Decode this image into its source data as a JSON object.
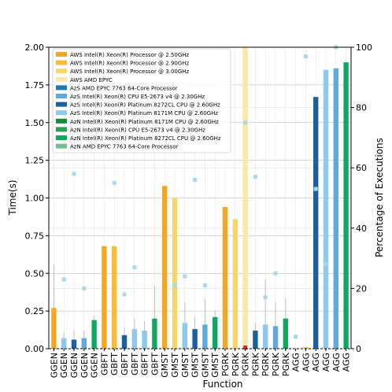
{
  "chart_data": {
    "type": "bar",
    "xlabel": "Function",
    "ylabel": "Time(s)",
    "y2label": "Percentage of Executions",
    "ylim": [
      0,
      2.0
    ],
    "y2lim": [
      0,
      100
    ],
    "yticks": [
      "0.00",
      "0.25",
      "0.50",
      "0.75",
      "1.00",
      "1.25",
      "1.50",
      "1.75",
      "2.00"
    ],
    "y2ticks": [
      "0",
      "20",
      "40",
      "60",
      "80",
      "100"
    ],
    "grid": true,
    "legend_position": "top-left",
    "legend": [
      {
        "name": "AWS Intel(R) Xeon(R) Processor @ 2.50GHz",
        "color": "#f5a623"
      },
      {
        "name": "AWS Intel(R) Xeon(R) Processor @ 2.90GHz",
        "color": "#f7bd3a"
      },
      {
        "name": "AWS Intel(R) Xeon(R) Processor @ 3.00GHz",
        "color": "#fad66a"
      },
      {
        "name": "AWS AMD EPYC",
        "color": "#fbe7a6"
      },
      {
        "name": "AzS AMD EPYC 7763 64-Core Processor",
        "color": "#1f77b4"
      },
      {
        "name": "AzS Intel(R) Xeon(R) CPU E5-2673 v4 @ 2.30GHz",
        "color": "#5fa8e0"
      },
      {
        "name": "AzS Intel(R) Xeon(R) Platinum 8272CL CPU @ 2.60GHz",
        "color": "#1a5f9e"
      },
      {
        "name": "AzS Intel(R) Xeon(R) Platinum 8171M CPU @ 2.60GHz",
        "color": "#8ec8ea"
      },
      {
        "name": "AzN Intel(R) Xeon(R) Platinum 8171M CPU @ 2.60GHz",
        "color": "#178a33"
      },
      {
        "name": "AzN Intel(R) Xeon(R) CPU E5-2673 v4 @ 2.30GHz",
        "color": "#2e9e4f"
      },
      {
        "name": "AzN Intel(R) Xeon(R) Platinum 8272CL CPU @ 2.60GHz",
        "color": "#10a860"
      },
      {
        "name": "AzN AMD EPYC 7763 64-Core Processor",
        "color": "#74c08d"
      }
    ],
    "categories": [
      "GGEN",
      "GGEN",
      "GGEN",
      "GGEN",
      "GGEN",
      "GBFT",
      "GBFT",
      "GBFT",
      "GBFT",
      "GBFT",
      "GBFT",
      "GMST",
      "GMST",
      "GMST",
      "GMST",
      "GMST",
      "GMST",
      "PGRK",
      "PGRK",
      "PGRK",
      "PGRK",
      "PGRK",
      "PGRK",
      "PGRK",
      "AGG",
      "AGG",
      "AGG",
      "AGG",
      "AGG",
      "AGG"
    ],
    "values": [
      0.27,
      0.07,
      0.06,
      0.07,
      0.19,
      0.68,
      0.68,
      0.09,
      0.13,
      0.12,
      0.2,
      1.08,
      1.0,
      0.17,
      0.13,
      0.16,
      0.21,
      0.94,
      0.86,
      2.0,
      0.12,
      0.16,
      0.15,
      0.2,
      0.0,
      0.01,
      1.67,
      1.85,
      1.86,
      1.9
    ],
    "bar_colors": [
      "#f5a623",
      "#8ec8ea",
      "#1a5f9e",
      "#5fa8e0",
      "#10a860",
      "#f5a623",
      "#f7bd3a",
      "#1a5f9e",
      "#8ec8ea",
      "#8ec8ea",
      "#10a860",
      "#f5a623",
      "#fad66a",
      "#8ec8ea",
      "#1a5f9e",
      "#5fa8e0",
      "#10a860",
      "#f5a623",
      "#fad66a",
      "#fbe7a6",
      "#1a5f9e",
      "#8ec8ea",
      "#5fa8e0",
      "#10a860",
      "#f5a623",
      "#f7bd3a",
      "#1a5f9e",
      "#8ec8ea",
      "#5fa8e0",
      "#10a860"
    ],
    "errors": [
      0.29,
      0.04,
      0.06,
      0.05,
      0.03,
      0.0,
      0.0,
      0.05,
      0.07,
      0.06,
      0.22,
      0.0,
      0.0,
      0.14,
      0.08,
      0.17,
      0.04,
      0.0,
      0.0,
      0.0,
      0.05,
      0.3,
      0.16,
      0.13,
      0.0,
      0.0,
      0.0,
      0.0,
      0.0,
      0.0
    ],
    "percent_markers": [
      null,
      23,
      58,
      20,
      null,
      null,
      55,
      18,
      27,
      null,
      null,
      null,
      21,
      24,
      56,
      21,
      null,
      null,
      null,
      75,
      57,
      17,
      25,
      null,
      4,
      97,
      53,
      28,
      100,
      null
    ],
    "red_marker_index": 19
  }
}
